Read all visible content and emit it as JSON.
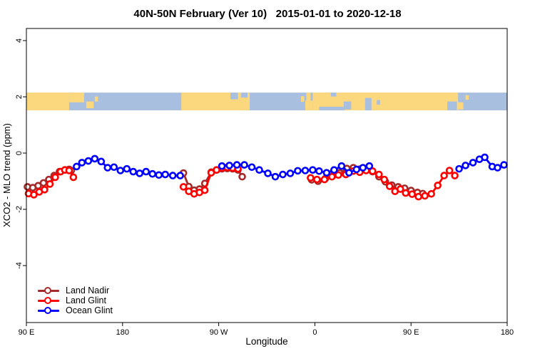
{
  "title": "40N-50N February (Ver 10)   2015-01-01 to 2020-12-18",
  "chart_data": {
    "type": "line",
    "title": "40N-50N February (Ver 10)   2015-01-01 to 2020-12-18",
    "xlabel": "Longitude",
    "ylabel": "XCO2 - MLO trend (ppm)",
    "legend_position": "bottom-left",
    "grid": false,
    "x_axis": {
      "description": "Longitude axis wrapping eastward from 90E; pos is degrees east of 90E",
      "range": [
        0,
        450
      ],
      "ticks": [
        {
          "pos": 0,
          "label": "90 E"
        },
        {
          "pos": 90,
          "label": "180"
        },
        {
          "pos": 180,
          "label": "90 W"
        },
        {
          "pos": 270,
          "label": "0"
        },
        {
          "pos": 360,
          "label": "90 E"
        },
        {
          "pos": 450,
          "label": "180"
        }
      ]
    },
    "y_axis": {
      "range": [
        -6.0,
        4.4
      ],
      "ticks": [
        {
          "value": 4,
          "label": "4"
        },
        {
          "value": 2,
          "label": "2"
        },
        {
          "value": 0,
          "label": "0"
        },
        {
          "value": -2,
          "label": "-2"
        },
        {
          "value": -4,
          "label": "-4"
        }
      ]
    },
    "map_strip": {
      "description": "40N-50N world-map band drawn across the plot near y=2",
      "y_top": 2.15,
      "y_bottom": 1.52,
      "ocean_color": "#a9bfdf",
      "land_color": "#fbd77e",
      "rects": [
        [
          "land",
          0,
          40,
          0,
          1
        ],
        [
          "land",
          40,
          54,
          0,
          0.55
        ],
        [
          "land",
          56,
          63,
          0.5,
          0.88
        ],
        [
          "land",
          64,
          67,
          0.22,
          0.5
        ],
        [
          "land",
          145,
          209,
          0,
          1
        ],
        [
          "ocean",
          191,
          198,
          0,
          0.38
        ],
        [
          "ocean",
          201,
          207,
          0,
          0.28
        ],
        [
          "land",
          257,
          260,
          0.2,
          0.52
        ],
        [
          "land",
          262,
          266,
          0,
          0.6
        ],
        [
          "land",
          261,
          268,
          0.45,
          1
        ],
        [
          "land",
          268,
          404,
          0,
          1
        ],
        [
          "ocean",
          274,
          298,
          0.8,
          1
        ],
        [
          "ocean",
          285,
          290,
          0,
          0.22
        ],
        [
          "ocean",
          297,
          304,
          0.5,
          0.95
        ],
        [
          "ocean",
          317,
          323,
          0.3,
          1
        ],
        [
          "ocean",
          328,
          331,
          0.42,
          0.68
        ],
        [
          "ocean",
          394,
          403,
          0.5,
          1
        ],
        [
          "land",
          403,
          409,
          0.55,
          0.95
        ],
        [
          "land",
          411,
          414,
          0.15,
          0.4
        ]
      ]
    },
    "series": [
      {
        "name": "Land Nadir",
        "color": "#a52a2a",
        "marker": "open-circle",
        "segments": [
          [
            [
              1,
              -1.2
            ],
            [
              6,
              -1.23
            ],
            [
              11,
              -1.16
            ],
            [
              16,
              -1.06
            ],
            [
              21,
              -0.94
            ],
            [
              26,
              -0.8
            ],
            [
              31,
              -0.66
            ],
            [
              36,
              -0.6
            ],
            [
              40,
              -0.58
            ],
            [
              42,
              -0.62
            ]
          ],
          [
            [
              147,
              -0.71
            ],
            [
              152,
              -1.19
            ],
            [
              157,
              -1.32
            ],
            [
              162,
              -1.28
            ],
            [
              167,
              -1.08
            ],
            [
              173,
              -0.68
            ],
            [
              178,
              -0.6
            ],
            [
              183,
              -0.56
            ],
            [
              188,
              -0.55
            ],
            [
              193,
              -0.56
            ],
            [
              198,
              -0.6
            ],
            [
              202,
              -0.84
            ]
          ],
          [
            [
              267,
              -0.95
            ],
            [
              273,
              -1.0
            ],
            [
              280,
              -0.9
            ],
            [
              287,
              -0.8
            ],
            [
              293,
              -0.7
            ],
            [
              300,
              -0.55
            ],
            [
              306,
              -0.52
            ],
            [
              312,
              -0.57
            ],
            [
              318,
              -0.6
            ],
            [
              324,
              -0.66
            ],
            [
              330,
              -0.84
            ],
            [
              336,
              -1.02
            ],
            [
              342,
              -1.14
            ],
            [
              348,
              -1.2
            ],
            [
              354,
              -1.25
            ],
            [
              360,
              -1.33
            ],
            [
              366,
              -1.4
            ],
            [
              371,
              -1.44
            ]
          ]
        ]
      },
      {
        "name": "Land Glint",
        "color": "#ff0000",
        "marker": "open-circle",
        "segments": [
          [
            [
              2,
              -1.44
            ],
            [
              7,
              -1.48
            ],
            [
              12,
              -1.38
            ],
            [
              17,
              -1.3
            ],
            [
              22,
              -1.1
            ],
            [
              27,
              -0.86
            ],
            [
              32,
              -0.66
            ],
            [
              36,
              -0.6
            ],
            [
              40,
              -0.62
            ],
            [
              44,
              -0.86
            ]
          ],
          [
            [
              147,
              -1.2
            ],
            [
              152,
              -1.36
            ],
            [
              157,
              -1.45
            ],
            [
              162,
              -1.4
            ],
            [
              167,
              -1.32
            ],
            [
              173,
              -0.7
            ],
            [
              178,
              -0.6
            ],
            [
              183,
              -0.53
            ],
            [
              188,
              -0.51
            ],
            [
              193,
              -0.53
            ],
            [
              198,
              -0.56
            ]
          ],
          [
            [
              266,
              -0.88
            ],
            [
              272,
              -0.94
            ],
            [
              279,
              -0.94
            ],
            [
              286,
              -0.84
            ],
            [
              292,
              -0.78
            ],
            [
              299,
              -0.76
            ],
            [
              306,
              -0.64
            ],
            [
              312,
              -0.68
            ],
            [
              318,
              -0.62
            ],
            [
              324,
              -0.64
            ],
            [
              330,
              -0.76
            ],
            [
              335,
              -0.94
            ],
            [
              340,
              -1.18
            ],
            [
              345,
              -1.36
            ],
            [
              350,
              -1.28
            ],
            [
              355,
              -1.42
            ],
            [
              361,
              -1.46
            ],
            [
              367,
              -1.55
            ],
            [
              373,
              -1.52
            ],
            [
              379,
              -1.45
            ],
            [
              385,
              -1.15
            ],
            [
              391,
              -0.8
            ],
            [
              396,
              -0.62
            ],
            [
              401,
              -0.8
            ]
          ]
        ]
      },
      {
        "name": "Ocean Glint",
        "color": "#0000ff",
        "marker": "open-circle",
        "segments": [
          [
            [
              47,
              -0.48
            ],
            [
              52,
              -0.34
            ],
            [
              58,
              -0.28
            ],
            [
              64,
              -0.2
            ],
            [
              70,
              -0.3
            ],
            [
              76,
              -0.52
            ],
            [
              82,
              -0.5
            ],
            [
              88,
              -0.62
            ],
            [
              94,
              -0.56
            ],
            [
              100,
              -0.66
            ],
            [
              106,
              -0.72
            ],
            [
              112,
              -0.66
            ],
            [
              118,
              -0.74
            ],
            [
              124,
              -0.78
            ],
            [
              130,
              -0.76
            ],
            [
              137,
              -0.8
            ],
            [
              144,
              -0.8
            ]
          ],
          [
            [
              183,
              -0.46
            ],
            [
              190,
              -0.44
            ],
            [
              197,
              -0.42
            ],
            [
              204,
              -0.42
            ],
            [
              211,
              -0.5
            ],
            [
              218,
              -0.6
            ],
            [
              226,
              -0.72
            ],
            [
              233,
              -0.84
            ],
            [
              240,
              -0.76
            ],
            [
              247,
              -0.72
            ],
            [
              254,
              -0.63
            ],
            [
              261,
              -0.62
            ],
            [
              268,
              -0.6
            ],
            [
              274,
              -0.64
            ],
            [
              281,
              -0.7
            ],
            [
              288,
              -0.6
            ],
            [
              295,
              -0.46
            ],
            [
              302,
              -0.7
            ],
            [
              309,
              -0.58
            ],
            [
              315,
              -0.52
            ],
            [
              321,
              -0.46
            ]
          ],
          [
            [
              405,
              -0.56
            ],
            [
              411,
              -0.44
            ],
            [
              418,
              -0.34
            ],
            [
              424,
              -0.22
            ],
            [
              429,
              -0.15
            ],
            [
              436,
              -0.48
            ],
            [
              441,
              -0.52
            ],
            [
              447,
              -0.42
            ]
          ]
        ]
      }
    ]
  }
}
